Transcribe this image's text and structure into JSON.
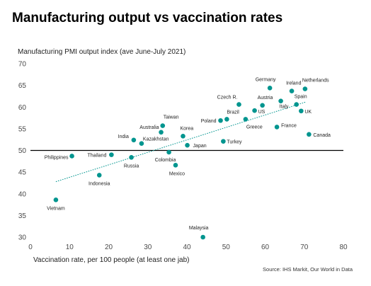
{
  "title": "Manufacturing output vs vaccination rates",
  "source": "Source: IHS Markit, Our World in Data",
  "colors": {
    "point": "#00958f",
    "trendline": "#00958f",
    "axis_text": "#4a4a4a",
    "reference_line": "#000000"
  },
  "chart_data": {
    "type": "scatter",
    "title": "Manufacturing output vs vaccination rates",
    "ylabel": "Manufacturing PMI output index (ave June-July 2021)",
    "xlabel": "Vaccination rate, per 100 people (at least one jab)",
    "xlim": [
      0,
      80
    ],
    "ylim": [
      30,
      70
    ],
    "xticks": [
      0,
      10,
      20,
      30,
      40,
      50,
      60,
      70,
      80
    ],
    "yticks": [
      30,
      35,
      40,
      45,
      50,
      55,
      60,
      65,
      70
    ],
    "grid": false,
    "reference_line_y": 50,
    "trendline": {
      "x1": 6.5,
      "y1": 42.8,
      "x2": 70.5,
      "y2": 61.2
    },
    "points": [
      {
        "label": "Vietnam",
        "x": 6.5,
        "y": 38.6
      },
      {
        "label": "Philippines",
        "x": 10.6,
        "y": 48.7
      },
      {
        "label": "Indonesia",
        "x": 17.6,
        "y": 44.3
      },
      {
        "label": "Thailand",
        "x": 20.7,
        "y": 49.0
      },
      {
        "label": "Russia",
        "x": 25.8,
        "y": 48.4
      },
      {
        "label": "India",
        "x": 26.4,
        "y": 52.4
      },
      {
        "label": "Kazakhstan",
        "x": 28.4,
        "y": 51.6
      },
      {
        "label": "Australia",
        "x": 33.4,
        "y": 54.2
      },
      {
        "label": "Taiwan",
        "x": 33.8,
        "y": 55.7
      },
      {
        "label": "Colombia",
        "x": 35.4,
        "y": 49.6
      },
      {
        "label": "Mexico",
        "x": 37.1,
        "y": 46.6
      },
      {
        "label": "Korea",
        "x": 39.0,
        "y": 53.3
      },
      {
        "label": "Japan",
        "x": 40.1,
        "y": 51.2
      },
      {
        "label": "Malaysia",
        "x": 44.1,
        "y": 30.0
      },
      {
        "label": "Poland",
        "x": 48.6,
        "y": 56.9
      },
      {
        "label": "Turkey",
        "x": 49.3,
        "y": 52.1
      },
      {
        "label": "Brazil",
        "x": 50.2,
        "y": 57.2
      },
      {
        "label": "Czech R.",
        "x": 53.3,
        "y": 60.6
      },
      {
        "label": "Greece",
        "x": 55.0,
        "y": 57.2
      },
      {
        "label": "US",
        "x": 57.3,
        "y": 59.2
      },
      {
        "label": "Austria",
        "x": 59.3,
        "y": 60.4
      },
      {
        "label": "Germany",
        "x": 61.2,
        "y": 64.4
      },
      {
        "label": "France",
        "x": 63.0,
        "y": 55.4
      },
      {
        "label": "Italy",
        "x": 64.0,
        "y": 61.4
      },
      {
        "label": "Ireland",
        "x": 66.8,
        "y": 63.7
      },
      {
        "label": "Spain",
        "x": 68.0,
        "y": 60.6
      },
      {
        "label": "UK",
        "x": 69.2,
        "y": 59.1
      },
      {
        "label": "Netherlands",
        "x": 70.2,
        "y": 64.2
      },
      {
        "label": "Canada",
        "x": 71.2,
        "y": 53.7
      }
    ]
  }
}
